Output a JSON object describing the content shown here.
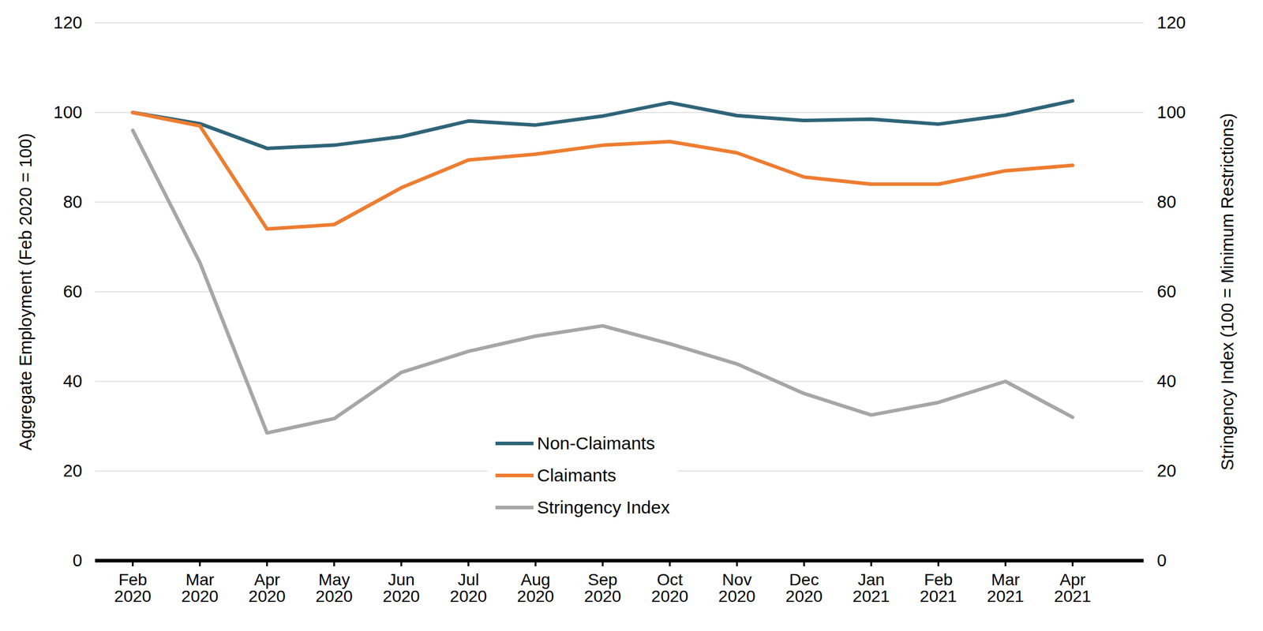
{
  "chart_data": {
    "type": "line",
    "x": [
      "Feb 2020",
      "Mar 2020",
      "Apr 2020",
      "May 2020",
      "Jun 2020",
      "Jul 2020",
      "Aug 2020",
      "Sep 2020",
      "Oct 2020",
      "Nov 2020",
      "Dec 2020",
      "Jan 2021",
      "Feb 2021",
      "Mar 2021",
      "Apr 2021"
    ],
    "y_label": "Aggregate Employment (Feb 2020 = 100)",
    "y2_label": "Stringency Index (100 = Minimum Restrictions)",
    "ylim": [
      0,
      120
    ],
    "yticks": [
      0,
      20,
      40,
      60,
      80,
      100,
      120
    ],
    "y2lim": [
      0,
      120
    ],
    "y2ticks": [
      0,
      20,
      40,
      60,
      80,
      100,
      120
    ],
    "grid": true,
    "legend": "bottom",
    "series": [
      {
        "name": "Non-Claimants",
        "color": "#2e6478",
        "values": [
          100,
          97.5,
          92,
          92.7,
          94.6,
          98.1,
          97.2,
          99.2,
          102.2,
          99.3,
          98.2,
          98.5,
          97.4,
          99.4,
          102.6
        ]
      },
      {
        "name": "Claimants",
        "color": "#ed7d31",
        "values": [
          100,
          97,
          74,
          75,
          83.2,
          89.4,
          90.7,
          92.7,
          93.5,
          91,
          85.6,
          84,
          84,
          87,
          88.2
        ]
      },
      {
        "name": "Stringency Index",
        "color": "#a6a6a6",
        "axis": "y2",
        "values": [
          96,
          66.5,
          28.5,
          31.7,
          42,
          46.7,
          50.1,
          52.4,
          48.4,
          43.9,
          37.3,
          32.5,
          35.3,
          40,
          32
        ]
      }
    ]
  }
}
